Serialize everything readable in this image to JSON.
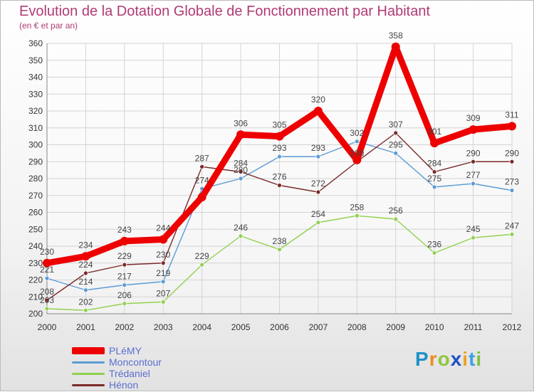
{
  "header": {
    "title": "Evolution de la Dotation Globale de Fonctionnement par Habitant",
    "subtitle": "(en € et par an)"
  },
  "logo": {
    "letters": [
      "P",
      "r",
      "o",
      "x",
      "i",
      "t",
      "i"
    ],
    "colors": [
      "#1e90c8",
      "#f08c1e",
      "#8cc83c",
      "#1e4fc8",
      "#f0a020",
      "#3ca0e0",
      "#80c040"
    ]
  },
  "chart_data": {
    "type": "line",
    "title": "Evolution de la Dotation Globale de Fonctionnement par Habitant",
    "subtitle": "(en € et par an)",
    "x": [
      "2000",
      "2001",
      "2002",
      "2003",
      "2004",
      "2005",
      "2006",
      "2007",
      "2008",
      "2009",
      "2010",
      "2011",
      "2012"
    ],
    "ylim": [
      200,
      360
    ],
    "yticks": [
      200,
      210,
      220,
      230,
      240,
      250,
      260,
      270,
      280,
      290,
      300,
      310,
      320,
      330,
      340,
      350,
      360
    ],
    "grid": true,
    "legend_position": "bottom-left",
    "series": [
      {
        "name": "Moncontour",
        "color": "#5b9bd5",
        "values": [
          221,
          214,
          217,
          219,
          274,
          280,
          293,
          293,
          302,
          295,
          275,
          277,
          273
        ],
        "labels": [
          "221",
          "214",
          "217",
          "219",
          "274",
          "280",
          "293",
          "293",
          "302",
          "295",
          "275",
          "277",
          "273"
        ]
      },
      {
        "name": "Trédaniel",
        "color": "#92d050",
        "values": [
          203,
          202,
          206,
          207,
          229,
          246,
          238,
          254,
          258,
          256,
          236,
          245,
          247
        ],
        "labels": [
          "203",
          "202",
          "206",
          "207",
          "229",
          "246",
          "238",
          "254",
          "258",
          "256",
          "236",
          "245",
          "247"
        ]
      },
      {
        "name": "Hénon",
        "color": "#7b2a2a",
        "values": [
          208,
          224,
          229,
          230,
          287,
          284,
          276,
          272,
          290,
          307,
          284,
          290,
          290
        ],
        "labels": [
          "208",
          "224",
          "229",
          "230",
          "287",
          "284",
          "276",
          "272",
          "290",
          "307",
          "284",
          "290",
          "290"
        ]
      },
      {
        "name": "PLéMY",
        "color": "#ee0000",
        "values": [
          230,
          234,
          243,
          244,
          269,
          306,
          305,
          320,
          291,
          358,
          301,
          309,
          311
        ],
        "labels": [
          "230",
          "234",
          "243",
          "244",
          "",
          "306",
          "305",
          "320",
          "",
          "358",
          "301",
          "309",
          "311"
        ]
      }
    ]
  }
}
